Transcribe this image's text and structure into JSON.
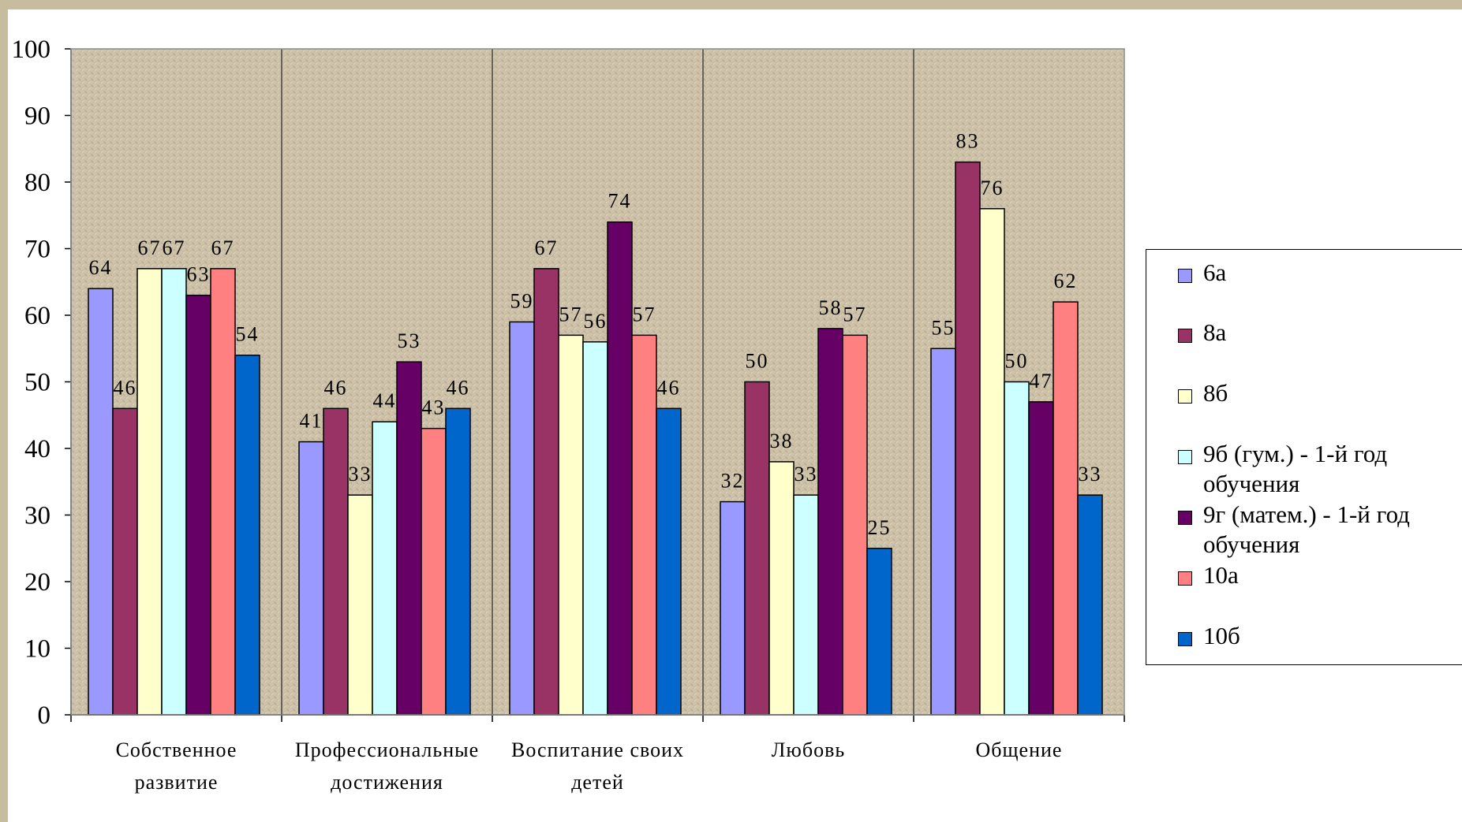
{
  "chart_data": {
    "type": "bar",
    "categories": [
      [
        "Собственное",
        "развитие"
      ],
      [
        "Профессиональные",
        "достижения"
      ],
      [
        "Воспитание своих",
        "детей"
      ],
      [
        "Любовь"
      ],
      [
        "Общение"
      ]
    ],
    "ylim": [
      0,
      100
    ],
    "yticks": [
      0,
      10,
      20,
      30,
      40,
      50,
      60,
      70,
      80,
      90,
      100
    ],
    "grid": false,
    "legend_position": "right",
    "series": [
      {
        "name": "6а",
        "color": "#9999ff",
        "values": [
          64,
          41,
          59,
          32,
          55
        ]
      },
      {
        "name": "8а",
        "color": "#993366",
        "values": [
          46,
          46,
          67,
          50,
          83
        ]
      },
      {
        "name": "8б",
        "color": "#ffffcc",
        "values": [
          67,
          33,
          57,
          38,
          76
        ]
      },
      {
        "name": "9б (гум.) - 1-й год обучения",
        "color": "#ccffff",
        "values": [
          67,
          44,
          56,
          33,
          50
        ]
      },
      {
        "name": "9г (матем.) - 1-й год обучения",
        "color": "#660066",
        "values": [
          63,
          53,
          74,
          58,
          47
        ]
      },
      {
        "name": "10а",
        "color": "#ff8080",
        "values": [
          67,
          43,
          57,
          57,
          62
        ]
      },
      {
        "name": "10б",
        "color": "#0066cc",
        "values": [
          54,
          46,
          46,
          25,
          33
        ]
      }
    ]
  }
}
